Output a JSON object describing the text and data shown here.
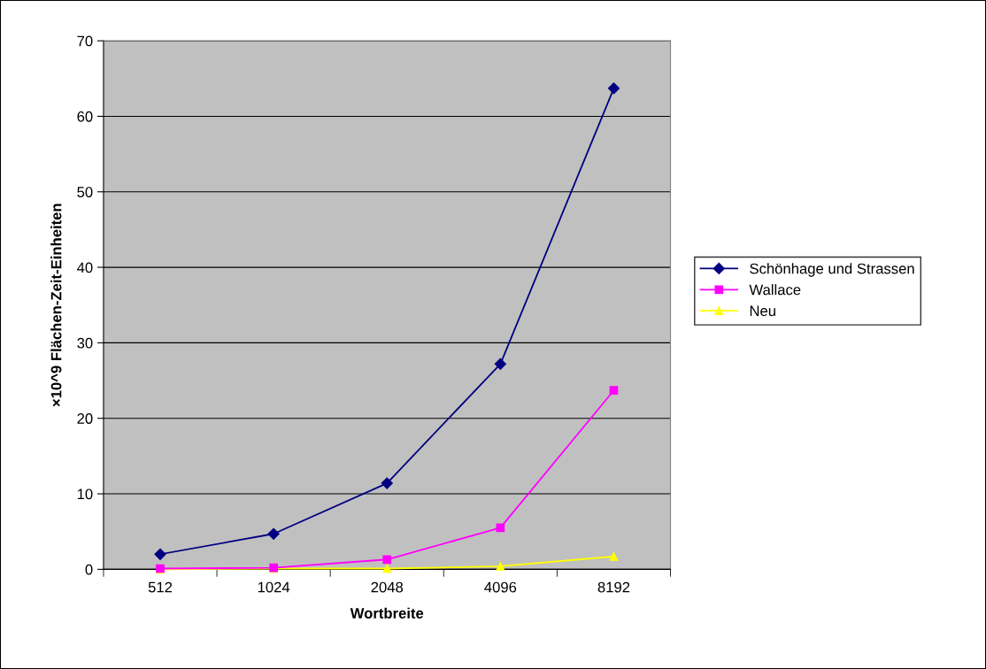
{
  "chart_data": {
    "type": "line",
    "xlabel": "Wortbreite",
    "ylabel": "×10^9 Flächen-Zeit-Einheiten",
    "categories": [
      "512",
      "1024",
      "2048",
      "4096",
      "8192"
    ],
    "series": [
      {
        "name": "Schönhage und Strassen",
        "color": "#000080",
        "marker": "diamond",
        "values": [
          2.0,
          4.7,
          11.4,
          27.2,
          63.7
        ]
      },
      {
        "name": "Wallace",
        "color": "#ff00ff",
        "marker": "square",
        "values": [
          0.1,
          0.2,
          1.3,
          5.5,
          23.7
        ]
      },
      {
        "name": "Neu",
        "color": "#ffff00",
        "marker": "triangle",
        "values": [
          0.0,
          0.1,
          0.1,
          0.4,
          1.7
        ]
      }
    ],
    "ylim": [
      0,
      70
    ],
    "yticks": [
      0,
      10,
      20,
      30,
      40,
      50,
      60,
      70
    ],
    "grid": "y",
    "legend": "right",
    "line_style": "solid"
  }
}
